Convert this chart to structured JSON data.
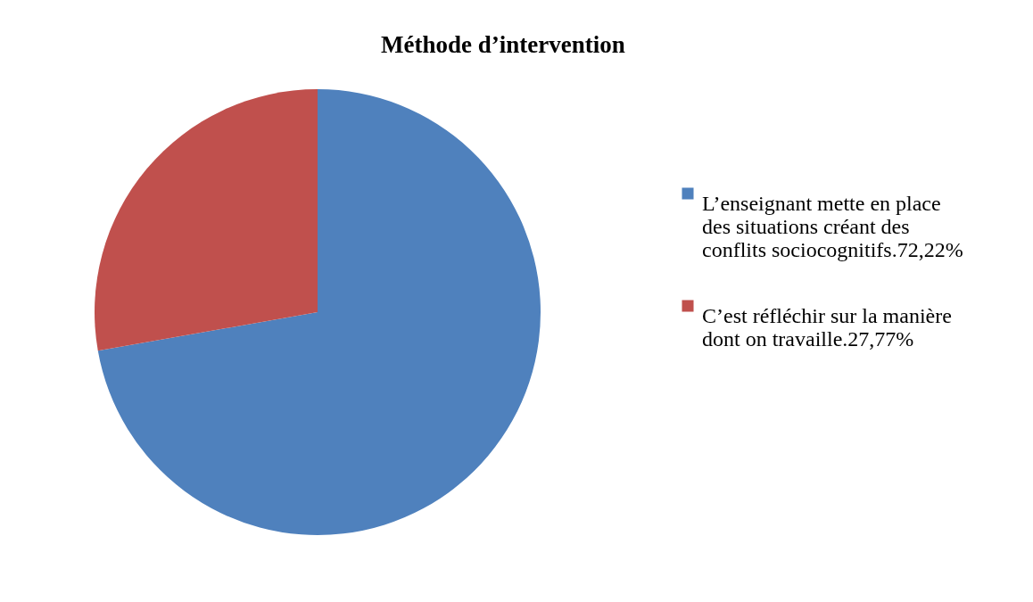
{
  "chart_data": {
    "type": "pie",
    "title": "Méthode d’intervention",
    "categories": [
      "L’enseignant mette en place des situations créant  des conflits sociocognitifs.72,22%",
      "C’est réfléchir sur la manière dont on travaille.27,77%"
    ],
    "values": [
      72.22,
      27.77
    ],
    "colors": [
      "#4f81bd",
      "#c0504d"
    ],
    "legend": "right"
  }
}
